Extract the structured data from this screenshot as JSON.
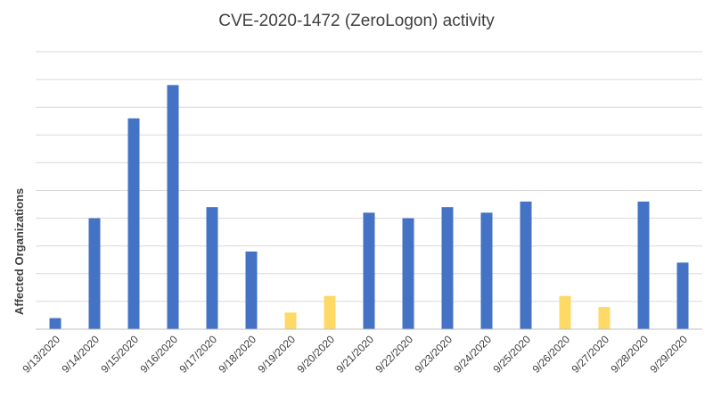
{
  "chart_data": {
    "type": "bar",
    "title": "CVE-2020-1472 (ZeroLogon) activity",
    "xlabel": "",
    "ylabel": "Affected Organizations",
    "categories": [
      "9/13/2020",
      "9/14/2020",
      "9/15/2020",
      "9/16/2020",
      "9/17/2020",
      "9/18/2020",
      "9/19/2020",
      "9/20/2020",
      "9/21/2020",
      "9/22/2020",
      "9/23/2020",
      "9/24/2020",
      "9/25/2020",
      "9/26/2020",
      "9/27/2020",
      "9/28/2020",
      "9/29/2020"
    ],
    "values": [
      0.4,
      4.0,
      7.6,
      8.8,
      4.4,
      2.8,
      0.6,
      1.2,
      4.2,
      4.0,
      4.4,
      4.2,
      4.6,
      1.2,
      0.8,
      4.6,
      2.4
    ],
    "ylim": [
      0,
      10
    ],
    "y_tick_labels_visible": false,
    "gridlines": "horizontal",
    "legend": "none",
    "colors": {
      "default_bar": "#4472C4",
      "weekend_bar": "#FFD966",
      "grid": "#D9D9D9",
      "axis": "#BFBFBF",
      "text": "#404040"
    },
    "highlighted_categories": [
      "9/19/2020",
      "9/20/2020",
      "9/26/2020",
      "9/27/2020"
    ]
  }
}
